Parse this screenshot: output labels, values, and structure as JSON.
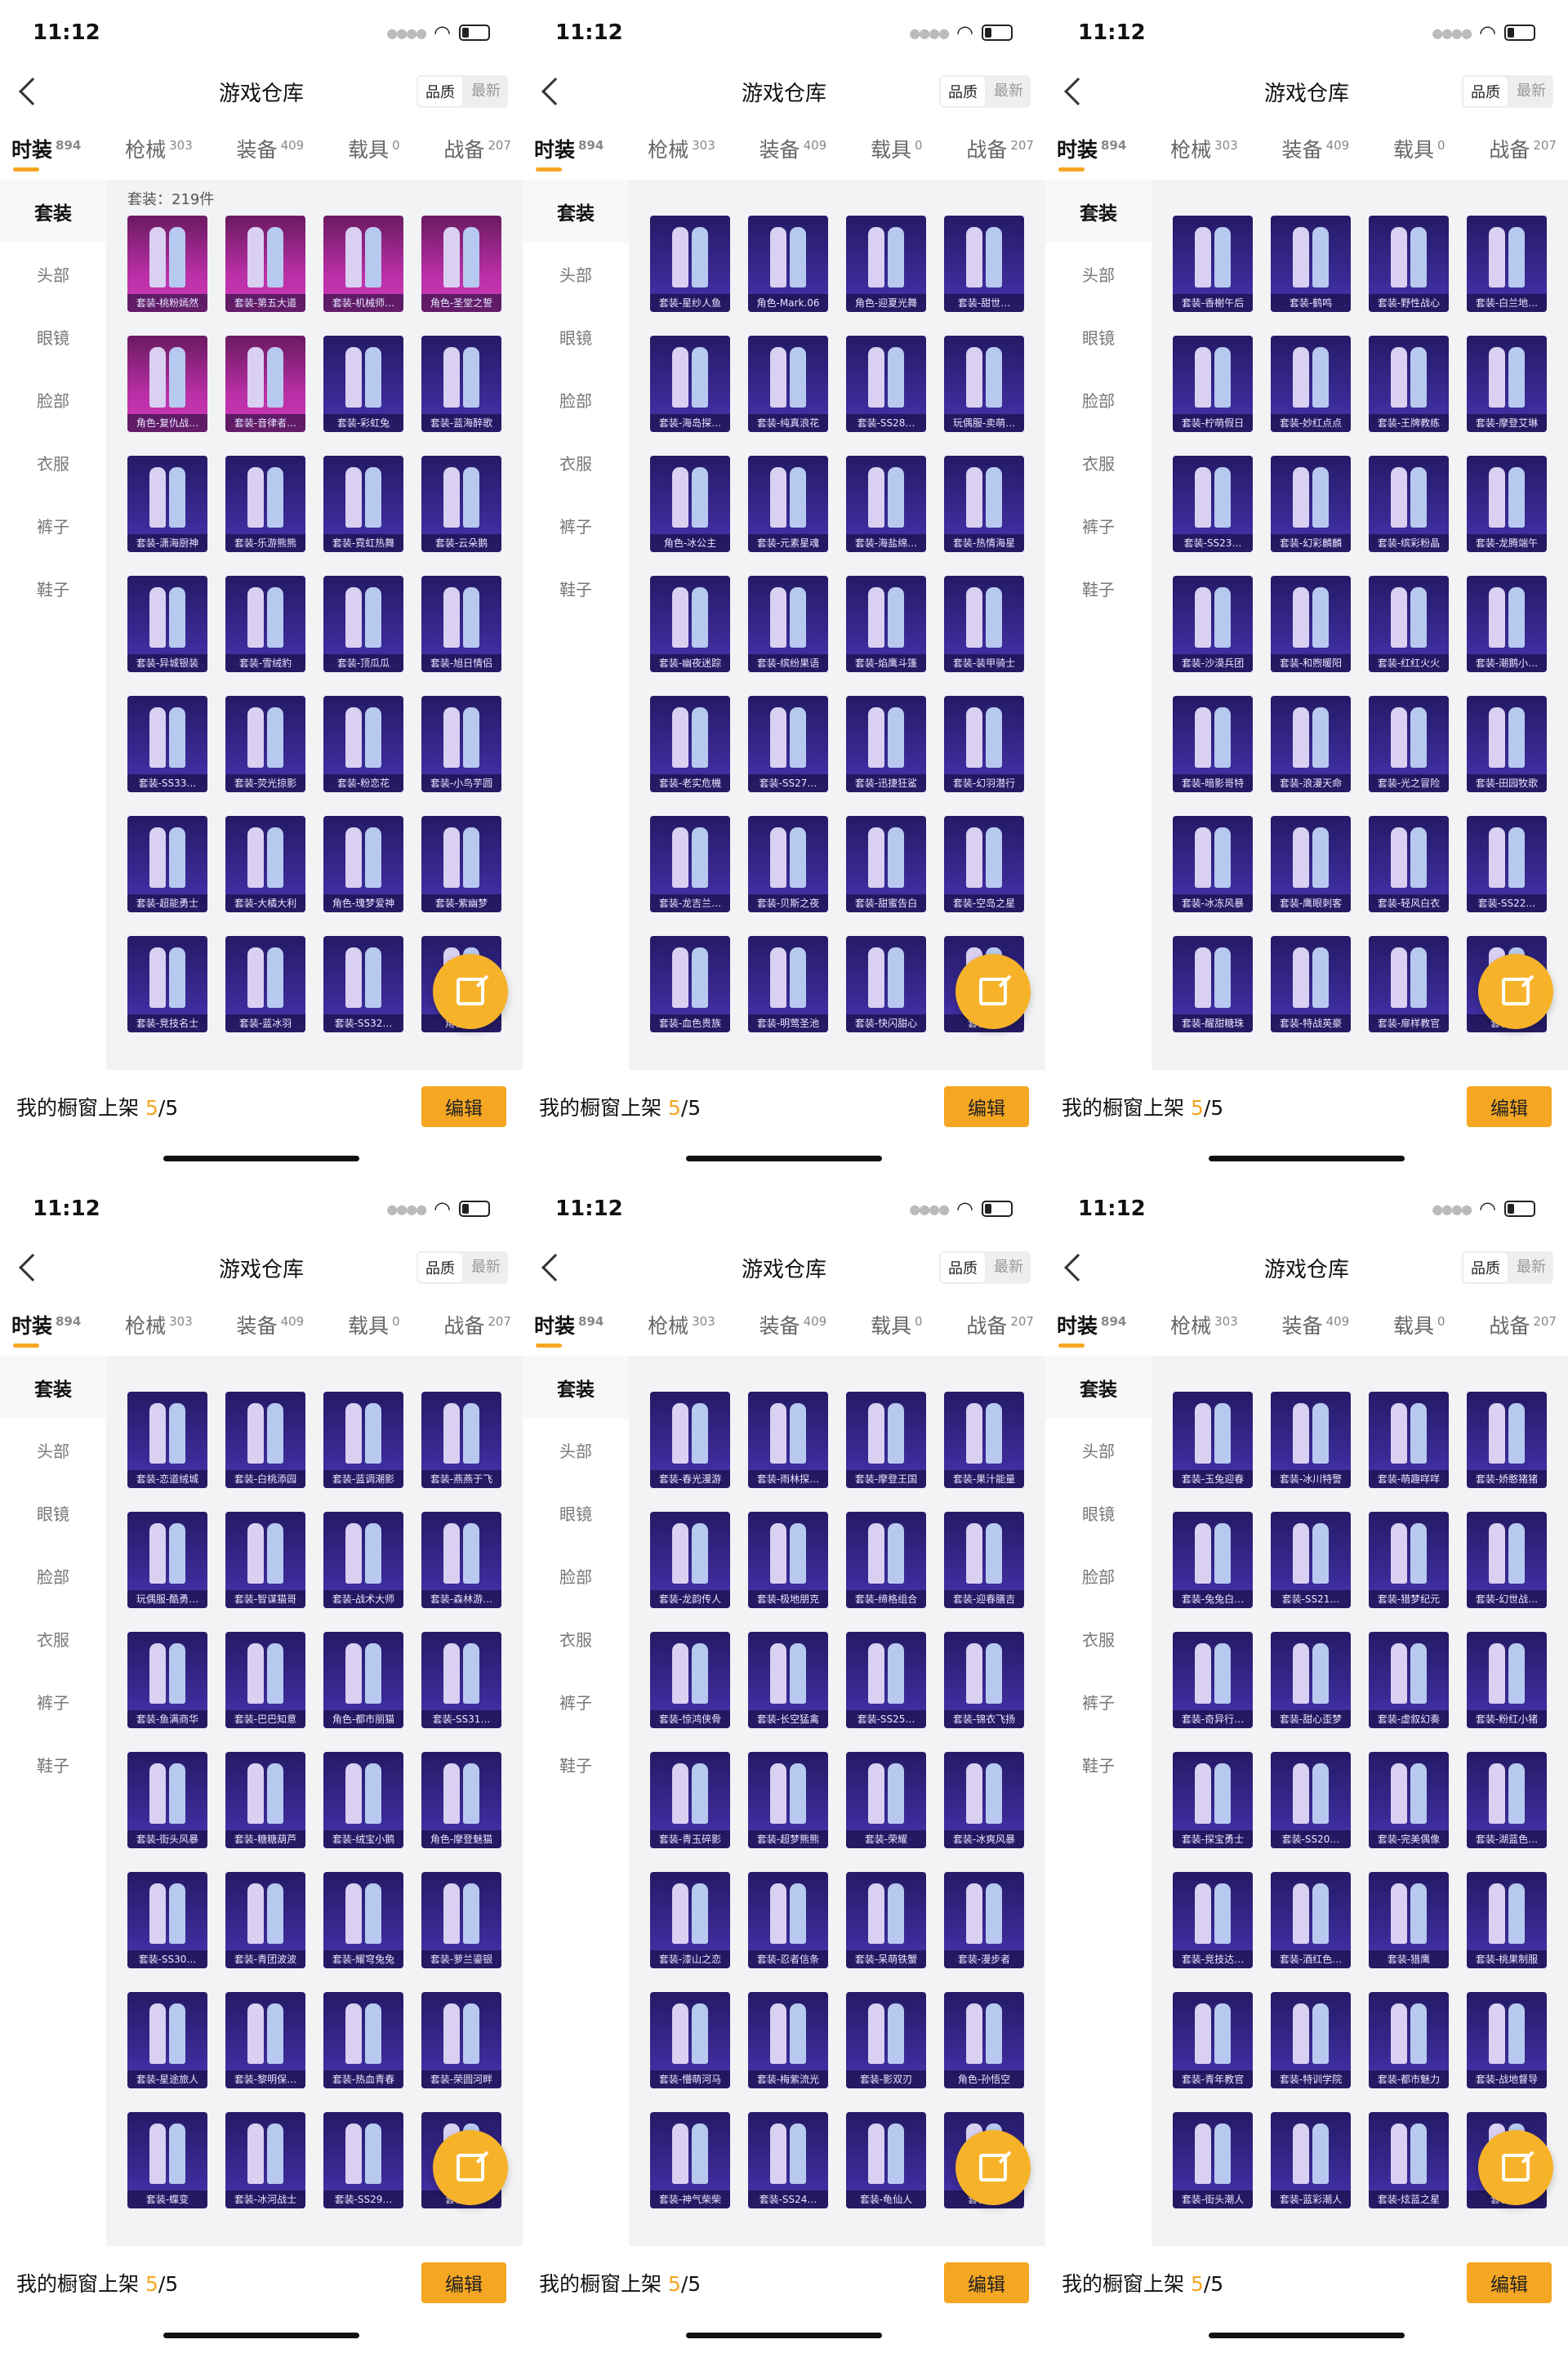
{
  "status_time": "11:12",
  "nav": {
    "title": "游戏仓库",
    "sort_quality": "品质",
    "sort_latest": "最新"
  },
  "tabs": [
    {
      "label": "时装",
      "count": "894"
    },
    {
      "label": "枪械",
      "count": "303"
    },
    {
      "label": "装备",
      "count": "409"
    },
    {
      "label": "载具",
      "count": "0"
    },
    {
      "label": "战备",
      "count": "207"
    }
  ],
  "sidebar": [
    "套装",
    "头部",
    "眼镜",
    "脸部",
    "衣服",
    "裤子",
    "鞋子"
  ],
  "suit_count_text": "套装：219件",
  "bottom": {
    "shelf_label": "我的橱窗上架",
    "shelf_current": "5",
    "shelf_total": "/5",
    "edit_label": "编辑"
  },
  "colors": {
    "accent": "#f5a623",
    "card_purple": "#3b2b98",
    "card_legend": "#b82fa5"
  },
  "icons": {
    "share": "share-icon",
    "back": "back-icon"
  },
  "screens": [
    {
      "show_count": true,
      "cards": [
        {
          "label": "套装-桃粉嫣然",
          "tier": "legend"
        },
        {
          "label": "套装-第五大道",
          "tier": "legend"
        },
        {
          "label": "套装-机械师…",
          "tier": "legend"
        },
        {
          "label": "角色-圣堂之誓",
          "tier": "legend"
        },
        {
          "label": "角色-复仇战…",
          "tier": "legend"
        },
        {
          "label": "套装-音律者…",
          "tier": "legend"
        },
        {
          "label": "套装-彩虹兔",
          "tier": "epic"
        },
        {
          "label": "套装-蓝海醉歌",
          "tier": "epic"
        },
        {
          "label": "套装-潇海厨神",
          "tier": "epic"
        },
        {
          "label": "套装-乐游熊熊",
          "tier": "epic"
        },
        {
          "label": "套装-霓虹热舞",
          "tier": "epic"
        },
        {
          "label": "套装-云朵鹅",
          "tier": "epic"
        },
        {
          "label": "套装-异城银装",
          "tier": "epic"
        },
        {
          "label": "套装-雪绒豹",
          "tier": "epic"
        },
        {
          "label": "套装-顶瓜瓜",
          "tier": "epic"
        },
        {
          "label": "套装-旭日情侣",
          "tier": "epic"
        },
        {
          "label": "套装-SS33…",
          "tier": "epic"
        },
        {
          "label": "套装-荧光掠影",
          "tier": "epic"
        },
        {
          "label": "套装-粉恋花",
          "tier": "epic"
        },
        {
          "label": "套装-小鸟芋圆",
          "tier": "epic"
        },
        {
          "label": "套装-超能勇士",
          "tier": "epic"
        },
        {
          "label": "套装-大橘大利",
          "tier": "epic"
        },
        {
          "label": "角色-瑰梦爱神",
          "tier": "epic"
        },
        {
          "label": "套装-紫幽梦",
          "tier": "epic"
        },
        {
          "label": "套装-竞技名士",
          "tier": "epic"
        },
        {
          "label": "套装-蓝冰羽",
          "tier": "epic"
        },
        {
          "label": "套装-SS32…",
          "tier": "epic"
        },
        {
          "label": "角色-…",
          "tier": "epic"
        }
      ]
    },
    {
      "show_count": false,
      "cards": [
        {
          "label": "套装-星纱人鱼",
          "tier": "epic"
        },
        {
          "label": "角色-Mark.06",
          "tier": "epic"
        },
        {
          "label": "角色-迎夏光舞",
          "tier": "epic"
        },
        {
          "label": "套装-甜世…",
          "tier": "epic"
        },
        {
          "label": "套装-海岛探…",
          "tier": "epic"
        },
        {
          "label": "套装-纯真浪花",
          "tier": "epic"
        },
        {
          "label": "套装-SS28…",
          "tier": "epic"
        },
        {
          "label": "玩偶服-卖萌…",
          "tier": "epic"
        },
        {
          "label": "角色-冰公主",
          "tier": "epic"
        },
        {
          "label": "套装-元素星魂",
          "tier": "epic"
        },
        {
          "label": "套装-海盐绵…",
          "tier": "epic"
        },
        {
          "label": "套装-热情海星",
          "tier": "epic"
        },
        {
          "label": "套装-幽夜迷踪",
          "tier": "epic"
        },
        {
          "label": "套装-缤纷果语",
          "tier": "epic"
        },
        {
          "label": "套装-焰鹰斗篷",
          "tier": "epic"
        },
        {
          "label": "套装-装甲骑士",
          "tier": "epic"
        },
        {
          "label": "套装-老实危機",
          "tier": "epic"
        },
        {
          "label": "套装-SS27…",
          "tier": "epic"
        },
        {
          "label": "套装-迅捷狂鲨",
          "tier": "epic"
        },
        {
          "label": "套装-幻羽潜行",
          "tier": "epic"
        },
        {
          "label": "套装-龙吉兰…",
          "tier": "epic"
        },
        {
          "label": "套装-贝斯之夜",
          "tier": "epic"
        },
        {
          "label": "套装-甜蜜告白",
          "tier": "epic"
        },
        {
          "label": "套装-空岛之星",
          "tier": "epic"
        },
        {
          "label": "套装-血色贵族",
          "tier": "epic"
        },
        {
          "label": "套装-明莺圣池",
          "tier": "epic"
        },
        {
          "label": "套装-快闪甜心",
          "tier": "epic"
        },
        {
          "label": "套装-…",
          "tier": "epic"
        }
      ]
    },
    {
      "show_count": false,
      "cards": [
        {
          "label": "套装-香榭午后",
          "tier": "epic"
        },
        {
          "label": "套装-鹤鸣",
          "tier": "epic"
        },
        {
          "label": "套装-野性战心",
          "tier": "epic"
        },
        {
          "label": "套装-白兰地…",
          "tier": "epic"
        },
        {
          "label": "套装-柠萌假日",
          "tier": "epic"
        },
        {
          "label": "套装-妙红点点",
          "tier": "epic"
        },
        {
          "label": "套装-王牌教练",
          "tier": "epic"
        },
        {
          "label": "套装-摩登艾琳",
          "tier": "epic"
        },
        {
          "label": "套装-SS23…",
          "tier": "epic"
        },
        {
          "label": "套装-幻彩麟麟",
          "tier": "epic"
        },
        {
          "label": "套装-缤彩粉晶",
          "tier": "epic"
        },
        {
          "label": "套装-龙腾端午",
          "tier": "epic"
        },
        {
          "label": "套装-沙漠兵团",
          "tier": "epic"
        },
        {
          "label": "套装-和煦暖阳",
          "tier": "epic"
        },
        {
          "label": "套装-红红火火",
          "tier": "epic"
        },
        {
          "label": "套装-潮鹅小…",
          "tier": "epic"
        },
        {
          "label": "套装-暗影哥特",
          "tier": "epic"
        },
        {
          "label": "套装-浪漫天命",
          "tier": "epic"
        },
        {
          "label": "套装-光之冒险",
          "tier": "epic"
        },
        {
          "label": "套装-田园牧歌",
          "tier": "epic"
        },
        {
          "label": "套装-冰冻风暴",
          "tier": "epic"
        },
        {
          "label": "套装-鹰眼刺客",
          "tier": "epic"
        },
        {
          "label": "套装-轻风白衣",
          "tier": "epic"
        },
        {
          "label": "套装-SS22…",
          "tier": "epic"
        },
        {
          "label": "套装-醒甜糖珠",
          "tier": "epic"
        },
        {
          "label": "套装-特战英豪",
          "tier": "epic"
        },
        {
          "label": "套装-扉样教官",
          "tier": "epic"
        },
        {
          "label": "套装-…",
          "tier": "epic"
        }
      ]
    },
    {
      "show_count": false,
      "cards": [
        {
          "label": "套装-恋道绒城",
          "tier": "epic"
        },
        {
          "label": "套装-白桃添园",
          "tier": "epic"
        },
        {
          "label": "套装-蓝调潮影",
          "tier": "epic"
        },
        {
          "label": "套装-燕燕于飞",
          "tier": "epic"
        },
        {
          "label": "玩偶服-酷勇…",
          "tier": "epic"
        },
        {
          "label": "套装-智谋猫哥",
          "tier": "epic"
        },
        {
          "label": "套装-战术大师",
          "tier": "epic"
        },
        {
          "label": "套装-森林游…",
          "tier": "epic"
        },
        {
          "label": "套装-鱼满商华",
          "tier": "epic"
        },
        {
          "label": "套装-巴巴知意",
          "tier": "epic"
        },
        {
          "label": "角色-都市丽猫",
          "tier": "epic"
        },
        {
          "label": "套装-SS31…",
          "tier": "epic"
        },
        {
          "label": "套装-街头风暴",
          "tier": "epic"
        },
        {
          "label": "套装-糖糖葫芦",
          "tier": "epic"
        },
        {
          "label": "套装-绒宝小鹅",
          "tier": "epic"
        },
        {
          "label": "角色-摩登魅猫",
          "tier": "epic"
        },
        {
          "label": "套装-SS30…",
          "tier": "epic"
        },
        {
          "label": "套装-青团波波",
          "tier": "epic"
        },
        {
          "label": "套装-耀穹兔兔",
          "tier": "epic"
        },
        {
          "label": "套装-萝兰鎏银",
          "tier": "epic"
        },
        {
          "label": "套装-星途旅人",
          "tier": "epic"
        },
        {
          "label": "套装-黎明保…",
          "tier": "epic"
        },
        {
          "label": "套装-热血青春",
          "tier": "epic"
        },
        {
          "label": "套装-荣圆河畔",
          "tier": "epic"
        },
        {
          "label": "套装-蝶变",
          "tier": "epic"
        },
        {
          "label": "套装-冰河战士",
          "tier": "epic"
        },
        {
          "label": "套装-SS29…",
          "tier": "epic"
        },
        {
          "label": "套装-…",
          "tier": "epic"
        }
      ]
    },
    {
      "show_count": false,
      "cards": [
        {
          "label": "套装-春光漫游",
          "tier": "epic"
        },
        {
          "label": "套装-雨林探…",
          "tier": "epic"
        },
        {
          "label": "套装-摩登王国",
          "tier": "epic"
        },
        {
          "label": "套装-果汁能量",
          "tier": "epic"
        },
        {
          "label": "套装-龙韵传人",
          "tier": "epic"
        },
        {
          "label": "套装-极地朋克",
          "tier": "epic"
        },
        {
          "label": "套装-缔格组合",
          "tier": "epic"
        },
        {
          "label": "套装-迎春膳吉",
          "tier": "epic"
        },
        {
          "label": "套装-惊鸿侠骨",
          "tier": "epic"
        },
        {
          "label": "套装-长空猛禽",
          "tier": "epic"
        },
        {
          "label": "套装-SS25…",
          "tier": "epic"
        },
        {
          "label": "套装-锦衣飞扬",
          "tier": "epic"
        },
        {
          "label": "套装-青玉碎影",
          "tier": "epic"
        },
        {
          "label": "套装-超梦熊熊",
          "tier": "epic"
        },
        {
          "label": "套装-荣耀",
          "tier": "epic"
        },
        {
          "label": "套装-冰爽风暴",
          "tier": "epic"
        },
        {
          "label": "套装-漆山之恋",
          "tier": "epic"
        },
        {
          "label": "套装-忍者信条",
          "tier": "epic"
        },
        {
          "label": "套装-呆萌铁蟹",
          "tier": "epic"
        },
        {
          "label": "套装-漫步者",
          "tier": "epic"
        },
        {
          "label": "套装-懵萌河马",
          "tier": "epic"
        },
        {
          "label": "套装-梅紫流光",
          "tier": "epic"
        },
        {
          "label": "套装-影双刃",
          "tier": "epic"
        },
        {
          "label": "角色-孙悟空",
          "tier": "epic"
        },
        {
          "label": "套装-神气柴柴",
          "tier": "epic"
        },
        {
          "label": "套装-SS24…",
          "tier": "epic"
        },
        {
          "label": "套装-龟仙人",
          "tier": "epic"
        },
        {
          "label": "套装-…",
          "tier": "epic"
        }
      ]
    },
    {
      "show_count": false,
      "cards": [
        {
          "label": "套装-玉兔迎春",
          "tier": "epic"
        },
        {
          "label": "套装-冰川特警",
          "tier": "epic"
        },
        {
          "label": "套装-萌趣咩咩",
          "tier": "epic"
        },
        {
          "label": "套装-娇憨猪猪",
          "tier": "epic"
        },
        {
          "label": "套装-兔兔白…",
          "tier": "epic"
        },
        {
          "label": "套装-SS21…",
          "tier": "epic"
        },
        {
          "label": "套装-猎梦纪元",
          "tier": "epic"
        },
        {
          "label": "套装-幻世战…",
          "tier": "epic"
        },
        {
          "label": "套装-奇异行…",
          "tier": "epic"
        },
        {
          "label": "套装-甜心歪梦",
          "tier": "epic"
        },
        {
          "label": "套装-虚叙幻奏",
          "tier": "epic"
        },
        {
          "label": "套装-粉红小猪",
          "tier": "epic"
        },
        {
          "label": "套装-探宝勇士",
          "tier": "epic"
        },
        {
          "label": "套装-SS20…",
          "tier": "epic"
        },
        {
          "label": "套装-完美偶像",
          "tier": "epic"
        },
        {
          "label": "套装-湖蓝色…",
          "tier": "epic"
        },
        {
          "label": "套装-竞技达…",
          "tier": "epic"
        },
        {
          "label": "套装-酒红色…",
          "tier": "epic"
        },
        {
          "label": "套装-猎鹰",
          "tier": "epic"
        },
        {
          "label": "套装-桃果制服",
          "tier": "epic"
        },
        {
          "label": "套装-青年教官",
          "tier": "epic"
        },
        {
          "label": "套装-特训学院",
          "tier": "epic"
        },
        {
          "label": "套装-都市魅力",
          "tier": "epic"
        },
        {
          "label": "套装-战地督导",
          "tier": "epic"
        },
        {
          "label": "套装-街头潮人",
          "tier": "epic"
        },
        {
          "label": "套装-蓝彩潮人",
          "tier": "epic"
        },
        {
          "label": "套装-炫蓝之星",
          "tier": "epic"
        },
        {
          "label": "套装-…",
          "tier": "epic"
        }
      ]
    }
  ]
}
